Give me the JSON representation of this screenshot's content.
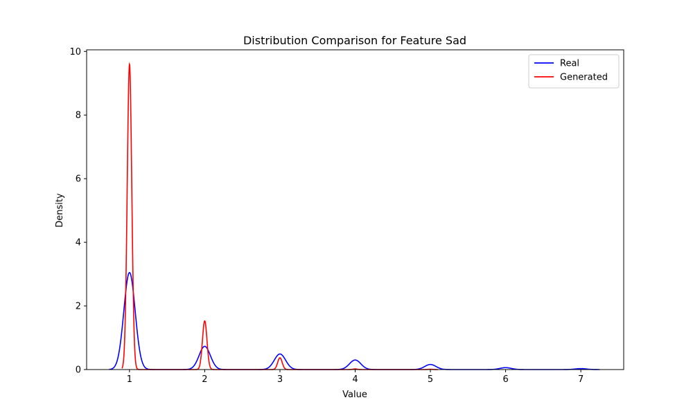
{
  "chart_data": {
    "type": "line",
    "title": "Distribution Comparison for Feature Sad",
    "xlabel": "Value",
    "ylabel": "Density",
    "xlim": [
      0.43,
      7.57
    ],
    "ylim": [
      0,
      10.05
    ],
    "xticks": [
      1,
      2,
      3,
      4,
      5,
      6,
      7
    ],
    "yticks": [
      0,
      2,
      4,
      6,
      8,
      10
    ],
    "grid": false,
    "legend_position": "top-right",
    "series": [
      {
        "name": "Real",
        "color": "#0000ff",
        "x_range": [
          0.73,
          7.25
        ],
        "peaks": [
          {
            "center": 1,
            "height": 3.05,
            "sigma": 0.075
          },
          {
            "center": 2,
            "height": 0.73,
            "sigma": 0.075
          },
          {
            "center": 3,
            "height": 0.49,
            "sigma": 0.075
          },
          {
            "center": 4,
            "height": 0.3,
            "sigma": 0.075
          },
          {
            "center": 5,
            "height": 0.16,
            "sigma": 0.075
          },
          {
            "center": 6,
            "height": 0.06,
            "sigma": 0.075
          },
          {
            "center": 7,
            "height": 0.03,
            "sigma": 0.075
          }
        ]
      },
      {
        "name": "Generated",
        "color": "#ff0000",
        "x_range": [
          0.9,
          5.1
        ],
        "peaks": [
          {
            "center": 1,
            "height": 9.6,
            "sigma": 0.03
          },
          {
            "center": 2,
            "height": 1.53,
            "sigma": 0.03
          },
          {
            "center": 3,
            "height": 0.37,
            "sigma": 0.03
          },
          {
            "center": 4,
            "height": 0.02,
            "sigma": 0.03
          },
          {
            "center": 5,
            "height": 0.01,
            "sigma": 0.03
          }
        ]
      }
    ]
  }
}
